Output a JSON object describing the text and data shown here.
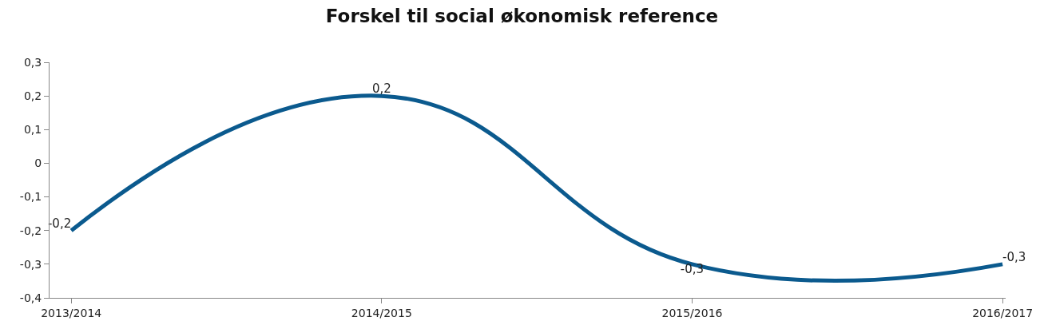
{
  "chart_data": {
    "type": "line",
    "title": "Forskel til social økonomisk reference",
    "categories": [
      "2013/2014",
      "2014/2015",
      "2015/2016",
      "2016/2017"
    ],
    "series": [
      {
        "color": "#0b5a8e",
        "values": [
          -0.2,
          0.2,
          -0.3,
          -0.3
        ],
        "value_labels": [
          "-0,2",
          "0,2",
          "-0,3",
          "-0,3"
        ]
      }
    ],
    "ylim": [
      -0.4,
      0.3
    ],
    "yticks": [
      {
        "value": -0.4,
        "label": "-0,4"
      },
      {
        "value": -0.3,
        "label": "-0,3"
      },
      {
        "value": -0.2,
        "label": "-0,2"
      },
      {
        "value": -0.1,
        "label": "-0,1"
      },
      0,
      {
        "value": 0.1,
        "label": "0,1"
      },
      {
        "value": 0.2,
        "label": "0,2"
      },
      {
        "value": 0.3,
        "label": "0,3"
      }
    ],
    "grid": false,
    "marker": "none",
    "line_style": "solid"
  }
}
